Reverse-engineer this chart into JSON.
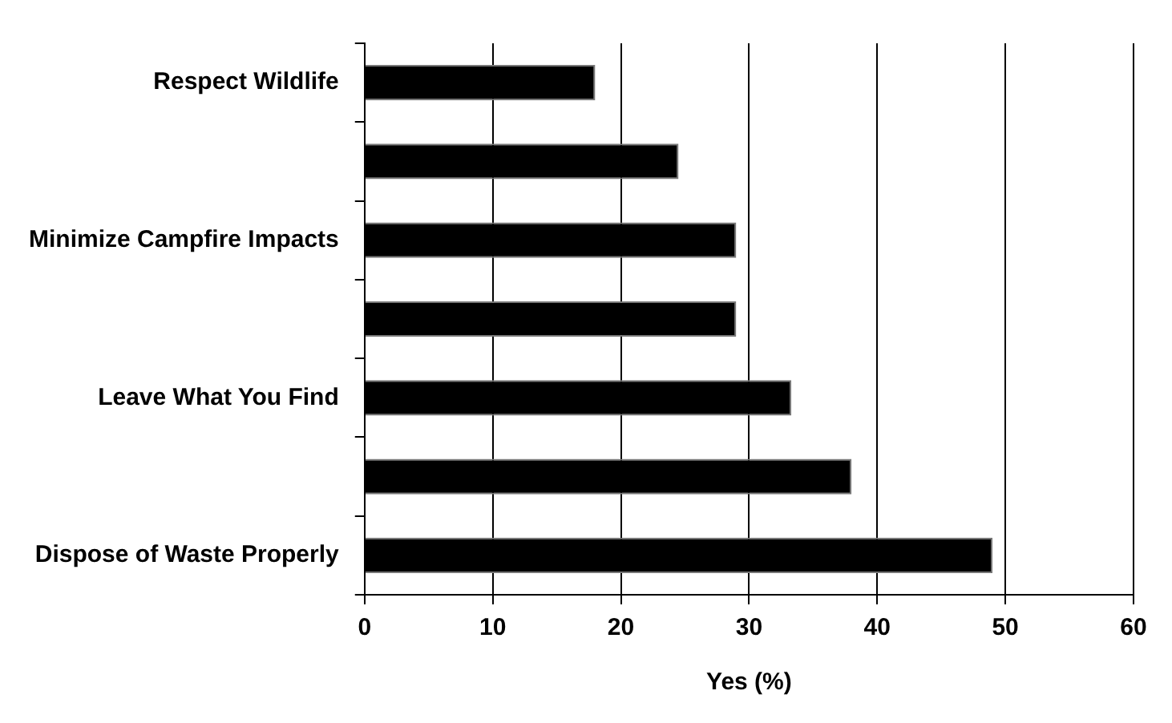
{
  "chart_data": {
    "type": "bar",
    "orientation": "horizontal",
    "xlabel": "Yes (%)",
    "categories": [
      "Respect Wildlife",
      null,
      "Minimize Campfire Impacts",
      null,
      "Leave What You Find",
      null,
      "Dispose of Waste Properly"
    ],
    "values": [
      18,
      24.5,
      29,
      29,
      33.3,
      38,
      49
    ],
    "color": "#000000",
    "xlim": [
      0,
      60
    ],
    "xticks": [
      0,
      10,
      20,
      30,
      40,
      50,
      60
    ],
    "grid": "x"
  }
}
